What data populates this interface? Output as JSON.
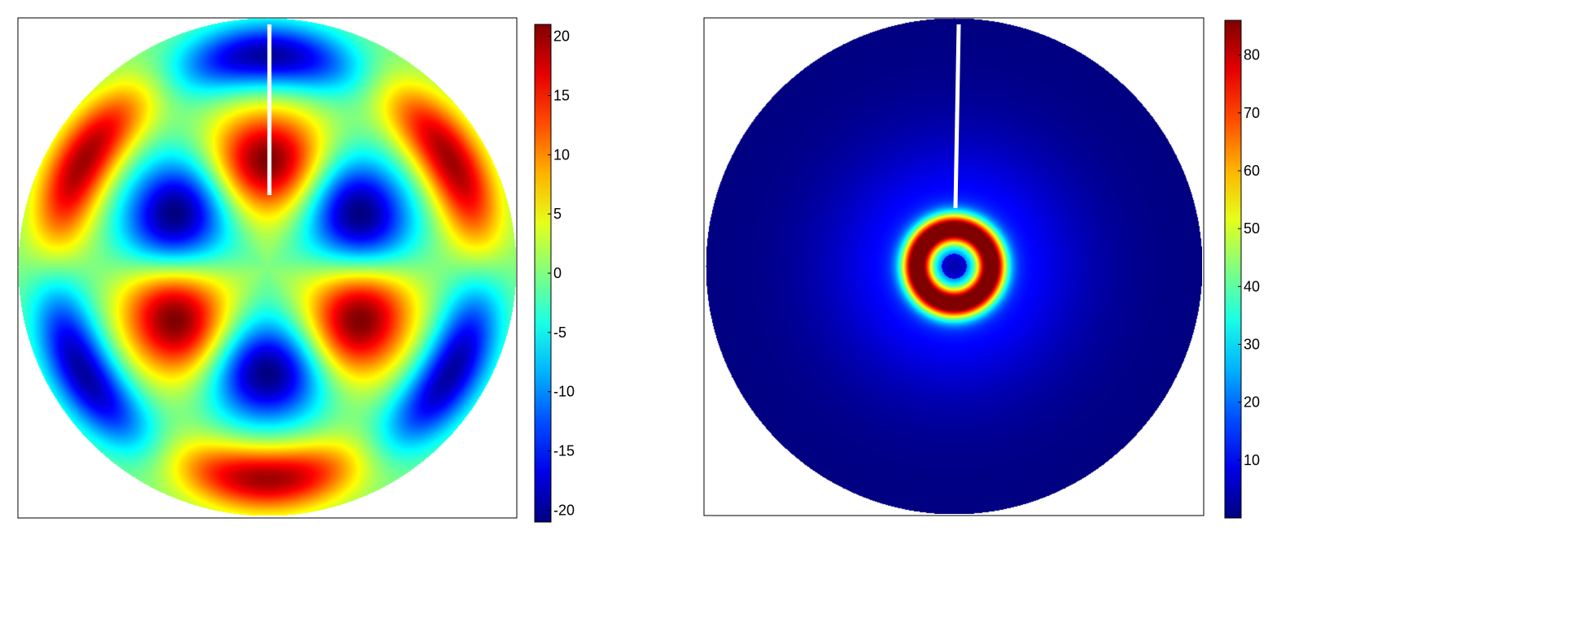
{
  "chart_data": [
    {
      "type": "heatmap",
      "title": "",
      "xlabel": "",
      "ylabel": "",
      "description_shape": "circular",
      "pattern": "three-fold symmetric field with six positive lobes and six negative lobes",
      "colormap": "jet",
      "colorbar": {
        "min": -21,
        "max": 21,
        "ticks": [
          20,
          15,
          10,
          5,
          0,
          -5,
          -10,
          -15,
          -20
        ],
        "tick_labels": [
          "20",
          "15",
          "10",
          "5",
          "0",
          "-5",
          "-10",
          "-15",
          "-20"
        ]
      },
      "peak_values": {
        "maximum": 21,
        "minimum": -21
      },
      "legend_placement": "right",
      "grid": false
    },
    {
      "type": "heatmap",
      "title": "",
      "xlabel": "",
      "ylabel": "",
      "description_shape": "circular",
      "pattern": "radially symmetric field: low at centre, bright ring near the centre, near zero outside",
      "colormap": "jet",
      "colorbar": {
        "min": 0,
        "max": 86,
        "ticks": [
          80,
          70,
          60,
          50,
          40,
          30,
          20,
          10
        ],
        "tick_labels": [
          "80",
          "70",
          "60",
          "50",
          "40",
          "30",
          "20",
          "10"
        ]
      },
      "peak_values": {
        "maximum": 86,
        "minimum": 0
      },
      "legend_placement": "right",
      "grid": false
    }
  ]
}
